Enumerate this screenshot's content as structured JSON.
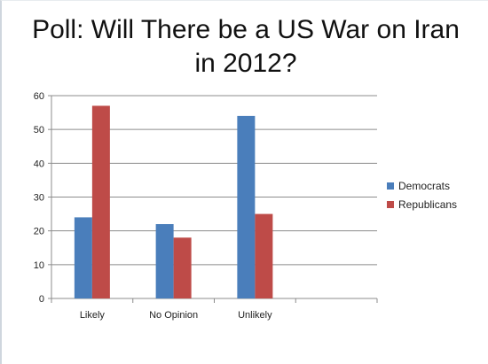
{
  "chart_data": {
    "type": "bar",
    "title": "Poll: Will There be a US War on Iran in 2012?",
    "categories": [
      "Likely",
      "No Opinion",
      "Unlikely",
      ""
    ],
    "series": [
      {
        "name": "Democrats",
        "values": [
          24,
          22,
          54,
          null
        ],
        "color": "#4a7ebb"
      },
      {
        "name": "Republicans",
        "values": [
          57,
          18,
          25,
          null
        ],
        "color": "#be4b48"
      }
    ],
    "ylim": [
      0,
      60
    ],
    "yticks": [
      0,
      10,
      20,
      30,
      40,
      50,
      60
    ],
    "grid": true,
    "legend": "right",
    "xlabel": "",
    "ylabel": ""
  }
}
